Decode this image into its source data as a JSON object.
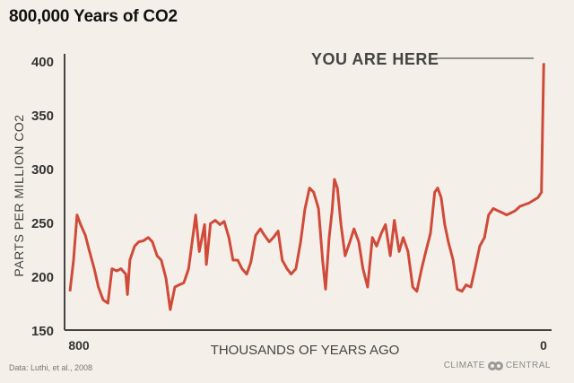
{
  "chart_data": {
    "type": "line",
    "title": "800,000 Years of CO2",
    "xlabel": "THOUSANDS OF YEARS AGO",
    "ylabel": "PARTS PER MILLION CO2",
    "xlim": [
      800,
      0
    ],
    "ylim": [
      150,
      400
    ],
    "x_ticks": [
      "800",
      "0"
    ],
    "y_ticks": [
      "400",
      "350",
      "300",
      "250",
      "200",
      "150"
    ],
    "grid": false,
    "line_color": "#d04a3a",
    "annotation": "YOU ARE HERE",
    "series": [
      {
        "x": [
          800,
          794,
          788,
          782,
          774,
          767,
          759,
          752,
          744,
          736,
          729,
          721,
          714,
          706,
          703,
          699,
          691,
          684,
          676,
          668,
          661,
          653,
          646,
          638,
          631,
          623,
          616,
          608,
          600,
          593,
          588,
          582,
          573,
          570,
          563,
          555,
          547,
          540,
          532,
          525,
          517,
          510,
          502,
          495,
          487,
          479,
          472,
          464,
          457,
          449,
          442,
          434,
          427,
          419,
          411,
          404,
          396,
          389,
          381,
          374,
          369,
          363,
          358,
          354,
          349,
          343,
          336,
          328,
          321,
          313,
          306,
          298,
          290,
          283,
          275,
          268,
          260,
          253,
          245,
          238,
          230,
          222,
          215,
          207,
          200,
          192,
          185,
          180,
          174,
          168,
          162,
          154,
          147,
          139,
          132,
          124,
          117,
          109,
          101,
          94,
          86,
          79,
          71,
          64,
          56,
          49,
          41,
          26,
          11,
          5,
          3,
          1
        ],
        "y": [
          186,
          215,
          257,
          248,
          238,
          223,
          207,
          190,
          178,
          175,
          207,
          205,
          207,
          202,
          183,
          215,
          228,
          232,
          233,
          236,
          232,
          219,
          215,
          198,
          169,
          190,
          192,
          194,
          207,
          236,
          257,
          223,
          248,
          211,
          249,
          252,
          248,
          251,
          236,
          215,
          215,
          207,
          202,
          213,
          238,
          244,
          238,
          232,
          236,
          242,
          215,
          207,
          202,
          207,
          232,
          262,
          282,
          278,
          263,
          215,
          188,
          236,
          261,
          290,
          282,
          248,
          219,
          232,
          244,
          232,
          207,
          190,
          236,
          228,
          240,
          248,
          219,
          252,
          223,
          236,
          223,
          190,
          186,
          207,
          223,
          240,
          278,
          282,
          273,
          248,
          232,
          215,
          188,
          186,
          192,
          190,
          207,
          228,
          236,
          257,
          263,
          261,
          259,
          257,
          259,
          261,
          265,
          268,
          273,
          278,
          340,
          398
        ]
      }
    ]
  },
  "footer": {
    "source": "Data: Luthi, et al., 2008",
    "logo_left": "CLIMATE",
    "logo_right": "CENTRAL"
  }
}
